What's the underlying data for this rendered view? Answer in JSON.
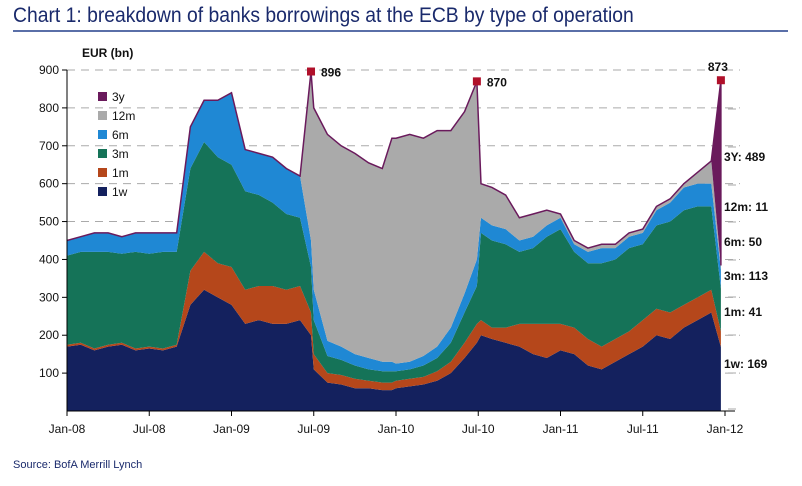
{
  "title": "Chart 1: breakdown of banks borrowings at the ECB by type of operation",
  "source": "Source: BofA Merrill Lynch",
  "chart_data": {
    "type": "area",
    "stacked": true,
    "ylabel": "EUR (bn)",
    "ylim": [
      0,
      900
    ],
    "yticks": [
      100,
      200,
      300,
      400,
      500,
      600,
      700,
      800,
      900
    ],
    "xticks": [
      {
        "m": 0,
        "label": "Jan-08"
      },
      {
        "m": 6,
        "label": "Jul-08"
      },
      {
        "m": 12,
        "label": "Jan-09"
      },
      {
        "m": 18,
        "label": "Jul-09"
      },
      {
        "m": 24,
        "label": "Jan-10"
      },
      {
        "m": 30,
        "label": "Jul-10"
      },
      {
        "m": 36,
        "label": "Jan-11"
      },
      {
        "m": 42,
        "label": "Jul-11"
      },
      {
        "m": 48,
        "label": "Jan-12"
      }
    ],
    "x_unit": "months since Jan-08",
    "grid": "dashed horizontal",
    "legend_position": "top-left",
    "series": [
      {
        "name": "1w",
        "color": "#14215e",
        "end_label": "1w: 169"
      },
      {
        "name": "1m",
        "color": "#b5471b",
        "end_label": "1m: 41"
      },
      {
        "name": "3m",
        "color": "#157358",
        "end_label": "3m: 113"
      },
      {
        "name": "6m",
        "color": "#1f88d4",
        "end_label": "6m: 50"
      },
      {
        "name": "12m",
        "color": "#aaaaaa",
        "end_label": "12m: 11"
      },
      {
        "name": "3y",
        "color": "#6a1a5c",
        "end_label": "3Y: 489"
      }
    ],
    "legend_order": [
      "3y",
      "12m",
      "6m",
      "3m",
      "1m",
      "1w"
    ],
    "rows": [
      [
        0,
        170,
        5,
        235,
        40,
        0,
        0
      ],
      [
        1,
        175,
        5,
        240,
        40,
        0,
        0
      ],
      [
        2,
        160,
        5,
        255,
        50,
        0,
        0
      ],
      [
        3,
        170,
        5,
        245,
        50,
        0,
        0
      ],
      [
        4,
        175,
        5,
        235,
        45,
        0,
        0
      ],
      [
        5,
        160,
        5,
        255,
        50,
        0,
        0
      ],
      [
        6,
        165,
        5,
        245,
        55,
        0,
        0
      ],
      [
        7,
        160,
        5,
        255,
        50,
        0,
        0
      ],
      [
        8,
        170,
        5,
        245,
        50,
        0,
        0
      ],
      [
        9,
        280,
        90,
        270,
        110,
        0,
        0
      ],
      [
        10,
        320,
        100,
        290,
        110,
        0,
        0
      ],
      [
        11,
        300,
        90,
        280,
        150,
        0,
        0
      ],
      [
        12,
        280,
        100,
        270,
        190,
        0,
        0
      ],
      [
        13,
        230,
        90,
        260,
        110,
        0,
        0
      ],
      [
        14,
        240,
        90,
        240,
        110,
        0,
        0
      ],
      [
        15,
        230,
        100,
        220,
        120,
        0,
        0
      ],
      [
        16,
        230,
        90,
        200,
        120,
        0,
        0
      ],
      [
        17,
        240,
        90,
        180,
        110,
        0,
        0
      ],
      [
        17.8,
        200,
        60,
        120,
        70,
        446,
        0
      ],
      [
        18,
        110,
        40,
        90,
        80,
        480,
        0
      ],
      [
        19,
        75,
        25,
        45,
        40,
        545,
        0
      ],
      [
        20,
        70,
        25,
        40,
        35,
        530,
        0
      ],
      [
        21,
        60,
        25,
        35,
        30,
        530,
        0
      ],
      [
        22,
        60,
        20,
        30,
        30,
        515,
        0
      ],
      [
        23,
        55,
        20,
        30,
        25,
        510,
        0
      ],
      [
        23.7,
        55,
        20,
        30,
        25,
        590,
        0
      ],
      [
        24,
        60,
        20,
        25,
        20,
        595,
        0
      ],
      [
        25,
        65,
        20,
        25,
        20,
        600,
        0
      ],
      [
        26,
        70,
        20,
        30,
        25,
        575,
        0
      ],
      [
        27,
        80,
        25,
        35,
        30,
        570,
        0
      ],
      [
        28,
        100,
        30,
        50,
        40,
        520,
        0
      ],
      [
        29,
        140,
        40,
        80,
        50,
        480,
        0
      ],
      [
        29.9,
        180,
        50,
        100,
        70,
        470,
        0
      ],
      [
        30.2,
        200,
        40,
        230,
        40,
        90,
        0
      ],
      [
        31,
        190,
        30,
        230,
        40,
        100,
        0
      ],
      [
        32,
        180,
        40,
        220,
        40,
        90,
        0
      ],
      [
        33,
        170,
        60,
        190,
        30,
        60,
        0
      ],
      [
        34,
        150,
        80,
        200,
        30,
        60,
        0
      ],
      [
        35,
        140,
        90,
        230,
        30,
        40,
        0
      ],
      [
        36,
        160,
        70,
        250,
        30,
        10,
        0
      ],
      [
        37,
        150,
        70,
        200,
        20,
        10,
        0
      ],
      [
        38,
        120,
        70,
        200,
        30,
        10,
        0
      ],
      [
        39,
        110,
        60,
        220,
        40,
        10,
        0
      ],
      [
        40,
        130,
        60,
        210,
        30,
        10,
        0
      ],
      [
        41,
        150,
        60,
        220,
        30,
        10,
        0
      ],
      [
        42,
        170,
        70,
        200,
        30,
        10,
        0
      ],
      [
        43,
        200,
        70,
        220,
        40,
        10,
        0
      ],
      [
        44,
        190,
        70,
        240,
        50,
        10,
        0
      ],
      [
        45,
        220,
        60,
        250,
        60,
        10,
        0
      ],
      [
        46,
        240,
        60,
        240,
        60,
        30,
        0
      ],
      [
        47,
        260,
        60,
        220,
        60,
        60,
        0
      ],
      [
        47.7,
        169,
        41,
        113,
        50,
        11,
        489
      ]
    ],
    "peaks": [
      {
        "m": 17.8,
        "value": 896,
        "label": "896"
      },
      {
        "m": 29.9,
        "value": 870,
        "label": "870"
      },
      {
        "m": 47.7,
        "value": 873,
        "label": "873"
      }
    ],
    "marker_color": "#b0102a"
  }
}
